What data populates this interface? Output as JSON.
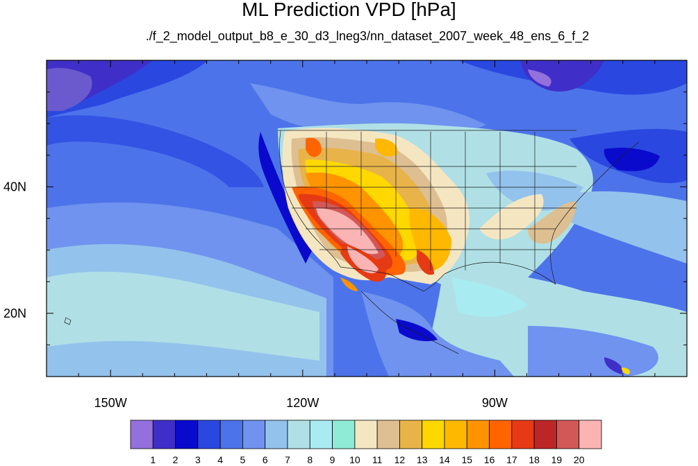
{
  "title": "ML Prediction VPD [hPa]",
  "subtitle": "./f_2_model_output_b8_e_30_d3_lneg3/nn_dataset_2007_week_48_ens_6_f_2",
  "map": {
    "lon_ticks": [
      {
        "value": -150,
        "label": "150W"
      },
      {
        "value": -120,
        "label": "120W"
      },
      {
        "value": -90,
        "label": "90W"
      }
    ],
    "lat_ticks": [
      {
        "value": 40,
        "label": "40N"
      },
      {
        "value": 20,
        "label": "20N"
      }
    ],
    "lon_range": [
      -160,
      -60
    ],
    "lat_range": [
      10,
      60
    ]
  },
  "colorbar": {
    "labels": [
      "1",
      "2",
      "3",
      "4",
      "5",
      "6",
      "7",
      "8",
      "9",
      "10",
      "11",
      "12",
      "13",
      "14",
      "15",
      "16",
      "17",
      "18",
      "19",
      "20"
    ],
    "colors": [
      "#9370db",
      "#3f2fc8",
      "#0a0acd",
      "#2a48e0",
      "#4d73ea",
      "#6f93ee",
      "#93c2ec",
      "#b0e0e6",
      "#a8ecf2",
      "#8fead6",
      "#f5e6c2",
      "#ddbf91",
      "#e8b44a",
      "#ffd800",
      "#ffb800",
      "#ff9400",
      "#ff6400",
      "#e63a14",
      "#bd2626",
      "#d25858",
      "#fbb4b4"
    ]
  }
}
